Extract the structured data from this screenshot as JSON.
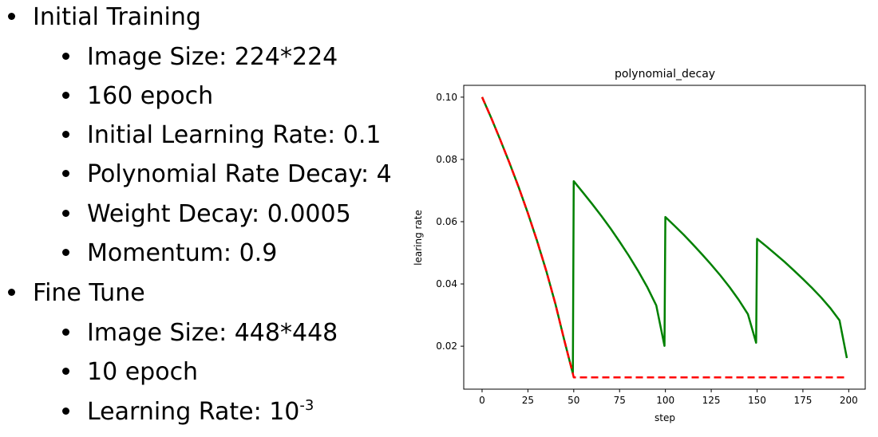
{
  "slide": {
    "sections": [
      {
        "title": "Initial Training",
        "items": [
          "Image Size: 224*224",
          "160 epoch",
          "Initial Learning Rate: 0.1",
          "Polynomial Rate Decay: 4",
          "Weight Decay: 0.0005",
          "Momentum: 0.9"
        ]
      },
      {
        "title": "Fine Tune",
        "items": [
          "Image Size: 448*448",
          "10 epoch"
        ],
        "last_item": {
          "text": "Learning Rate: 10",
          "superscript": "-3"
        }
      }
    ]
  },
  "chart_data": {
    "type": "line",
    "title": "polynomial_decay",
    "xlabel": "step",
    "ylabel": "learing rate",
    "xlim": [
      -10,
      209
    ],
    "ylim": [
      0.0062,
      0.1038
    ],
    "xticks": [
      0,
      25,
      50,
      75,
      100,
      125,
      150,
      175,
      200
    ],
    "yticks": [
      0.02,
      0.04,
      0.06,
      0.08,
      0.1
    ],
    "ytick_labels": [
      "0.02",
      "0.04",
      "0.06",
      "0.08",
      "0.10"
    ],
    "grid": false,
    "series": [
      {
        "color": "#008000",
        "style": "solid",
        "x": [
          0,
          5,
          10,
          15,
          20,
          25,
          30,
          35,
          40,
          45,
          49.5,
          50,
          55,
          60,
          65,
          70,
          75,
          80,
          85,
          90,
          95,
          99.5,
          100,
          105,
          110,
          115,
          120,
          125,
          130,
          135,
          140,
          145,
          149.5,
          150,
          155,
          160,
          165,
          170,
          175,
          180,
          185,
          190,
          195,
          199
        ],
        "y": [
          0.1,
          0.0933,
          0.0862,
          0.0788,
          0.071,
          0.0627,
          0.0538,
          0.0442,
          0.0336,
          0.0216,
          0.0112,
          0.073,
          0.0694,
          0.0657,
          0.0619,
          0.0579,
          0.0536,
          0.0491,
          0.0443,
          0.0391,
          0.0331,
          0.0201,
          0.0615,
          0.0587,
          0.0558,
          0.0527,
          0.0495,
          0.0462,
          0.0427,
          0.039,
          0.0349,
          0.0303,
          0.0211,
          0.0545,
          0.0521,
          0.0496,
          0.0471,
          0.0444,
          0.0416,
          0.0387,
          0.0356,
          0.0322,
          0.0283,
          0.0162
        ]
      },
      {
        "color": "#ff0000",
        "style": "dashed",
        "x": [
          0,
          5,
          10,
          15,
          20,
          25,
          30,
          35,
          40,
          45,
          49.5,
          50,
          199
        ],
        "y": [
          0.1,
          0.0933,
          0.0862,
          0.0788,
          0.071,
          0.0627,
          0.0538,
          0.0442,
          0.0336,
          0.0216,
          0.0112,
          0.01,
          0.01
        ]
      }
    ]
  }
}
